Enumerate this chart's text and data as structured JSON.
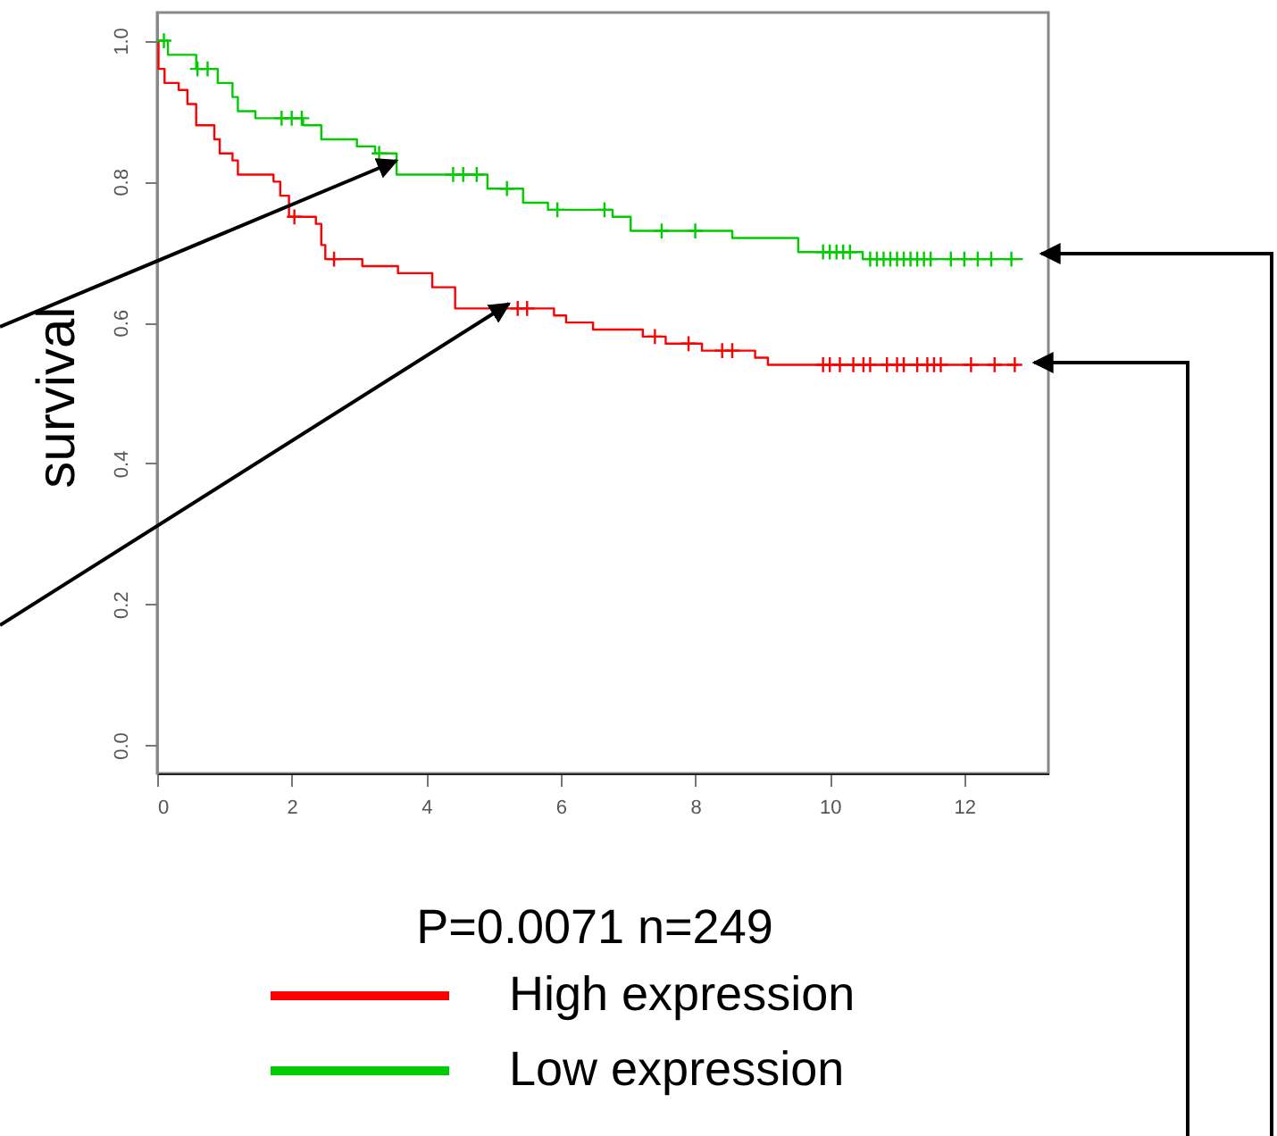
{
  "chart_data": {
    "type": "step",
    "ylabel": "survival",
    "legend_title": "P=0.0071  n=249",
    "legend": "bottom",
    "grid": false,
    "xlim": [
      0,
      13.25
    ],
    "ylim": [
      -0.04,
      1.04
    ],
    "xticks": [
      0,
      2,
      4,
      6,
      8,
      10,
      12
    ],
    "yticks": [
      {
        "value": 0,
        "label": "0.0"
      },
      {
        "value": 0.2,
        "label": "0.2"
      },
      {
        "value": 0.4,
        "label": "0.4"
      },
      {
        "value": 0.6,
        "label": "0.6"
      },
      {
        "value": 0.8,
        "label": "0.8"
      },
      {
        "value": 1,
        "label": "1.0"
      }
    ],
    "series": [
      {
        "name": "High expression",
        "color": "#ff0000",
        "x": [
          0,
          0.02,
          0.11,
          0.32,
          0.45,
          0.58,
          0.85,
          0.93,
          1.12,
          1.2,
          1.73,
          1.83,
          1.96,
          2.36,
          2.44,
          2.5,
          3.05,
          3.58,
          4.09,
          4.43,
          5.9,
          6.08,
          6.48,
          7.22,
          7.56,
          8.1,
          8.89,
          9.08,
          12.8
        ],
        "values": [
          1.0,
          0.96,
          0.94,
          0.93,
          0.91,
          0.88,
          0.86,
          0.84,
          0.83,
          0.81,
          0.8,
          0.78,
          0.75,
          0.74,
          0.71,
          0.69,
          0.68,
          0.67,
          0.65,
          0.62,
          0.61,
          0.6,
          0.59,
          0.58,
          0.57,
          0.56,
          0.55,
          0.54,
          0.54
        ]
      },
      {
        "name": "Low expression",
        "color": "#00cc00",
        "x": [
          0,
          0.16,
          0.58,
          0.9,
          1.12,
          1.2,
          1.46,
          2.17,
          2.44,
          2.97,
          3.24,
          3.56,
          4.91,
          5.44,
          5.81,
          6.77,
          7.04,
          8.55,
          9.53,
          10.49,
          12.87
        ],
        "values": [
          1.0,
          0.98,
          0.96,
          0.94,
          0.92,
          0.9,
          0.89,
          0.88,
          0.86,
          0.85,
          0.84,
          0.81,
          0.79,
          0.77,
          0.76,
          0.75,
          0.73,
          0.72,
          0.7,
          0.69,
          0.69
        ]
      },
      {
        "type": "scatter",
        "marker": "cross",
        "color": "#ff0000",
        "x": [
          2.04,
          2.63,
          5.36,
          5.5,
          7.4,
          7.9,
          8.4,
          8.55,
          9.9,
          10.0,
          10.15,
          10.35,
          10.5,
          10.6,
          10.85,
          11.0,
          11.1,
          11.3,
          11.45,
          11.55,
          11.65,
          12.1,
          12.45,
          12.75
        ],
        "values": [
          0.75,
          0.69,
          0.62,
          0.62,
          0.58,
          0.57,
          0.56,
          0.56,
          0.54,
          0.54,
          0.54,
          0.54,
          0.54,
          0.54,
          0.54,
          0.54,
          0.54,
          0.54,
          0.54,
          0.54,
          0.54,
          0.54,
          0.54,
          0.54
        ]
      },
      {
        "type": "scatter",
        "marker": "cross",
        "color": "#00cc00",
        "x": [
          0.1,
          0.6,
          0.75,
          1.85,
          2.0,
          2.15,
          3.3,
          4.4,
          4.55,
          4.75,
          5.2,
          5.95,
          6.65,
          7.5,
          8.0,
          9.9,
          10.0,
          10.1,
          10.2,
          10.3,
          10.6,
          10.7,
          10.8,
          10.9,
          11.0,
          11.1,
          11.2,
          11.3,
          11.4,
          11.5,
          11.8,
          12.0,
          12.2,
          12.4,
          12.7
        ],
        "values": [
          1.0,
          0.96,
          0.96,
          0.89,
          0.89,
          0.89,
          0.84,
          0.81,
          0.81,
          0.81,
          0.79,
          0.76,
          0.76,
          0.73,
          0.73,
          0.7,
          0.7,
          0.7,
          0.7,
          0.7,
          0.69,
          0.69,
          0.69,
          0.69,
          0.69,
          0.69,
          0.69,
          0.69,
          0.69,
          0.69,
          0.69,
          0.69,
          0.69,
          0.69,
          0.69
        ]
      }
    ]
  }
}
